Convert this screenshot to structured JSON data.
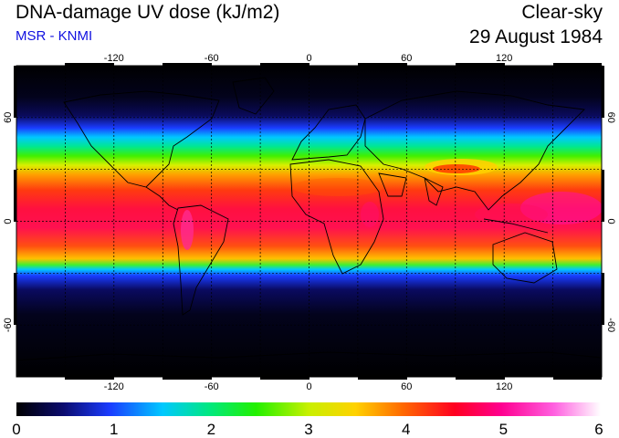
{
  "header": {
    "title": "DNA-damage UV dose (kJ/m2)",
    "source": "MSR - KNMI",
    "condition": "Clear-sky",
    "date": "29 August 1984"
  },
  "map": {
    "projection": "equirectangular",
    "lon_range": [
      -180,
      180
    ],
    "lat_range": [
      -90,
      90
    ],
    "lon_ticks": [
      "-120",
      "-60",
      "0",
      "60",
      "120"
    ],
    "lat_ticks": [
      "60",
      "0",
      "-60"
    ],
    "grid": "dashed every 30 degrees"
  },
  "colorbar": {
    "ticks": [
      "0",
      "1",
      "2",
      "3",
      "4",
      "5",
      "6"
    ],
    "range": [
      0,
      6
    ],
    "colors": [
      "#000000",
      "#0b0b6e",
      "#1a3cff",
      "#00c8ff",
      "#00e880",
      "#22f000",
      "#c8f000",
      "#ffd200",
      "#ff6a00",
      "#ff0020",
      "#ff0090",
      "#ff60e0",
      "#ffffff"
    ]
  }
}
